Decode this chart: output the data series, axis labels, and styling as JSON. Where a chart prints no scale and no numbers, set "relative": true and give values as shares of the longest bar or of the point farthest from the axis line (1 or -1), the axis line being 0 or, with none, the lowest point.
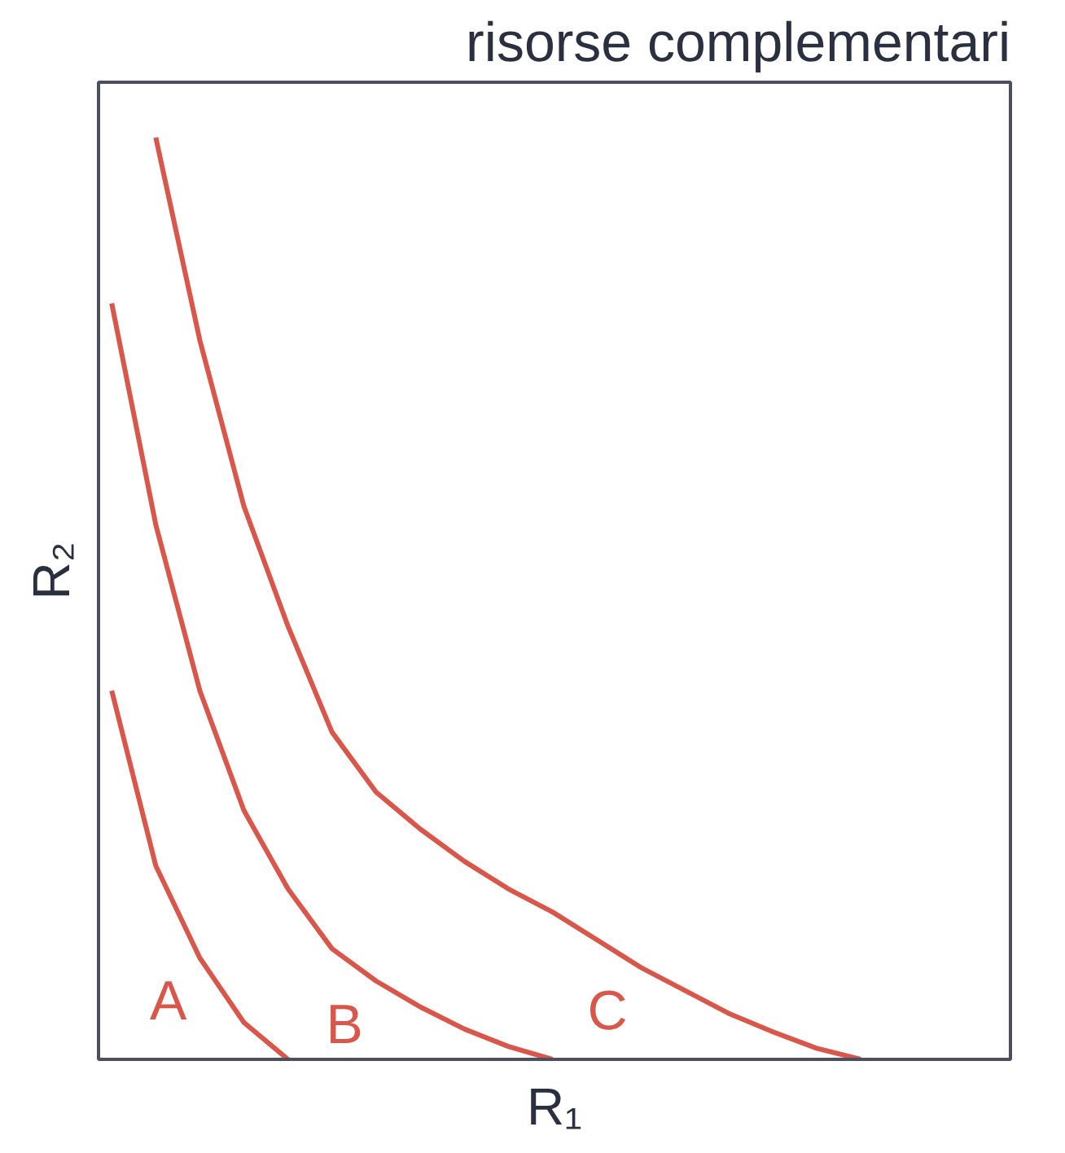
{
  "chart_data": {
    "type": "line",
    "title": "risorse complementari",
    "xlabel": "R₁",
    "ylabel": "R₂",
    "relative": true,
    "grid": false,
    "marker": "none",
    "line_style": "solid",
    "categories": [
      null,
      null,
      null,
      null,
      null,
      null,
      null,
      null,
      null,
      null,
      null,
      null,
      null,
      null,
      null,
      null,
      null,
      null
    ],
    "series": [
      {
        "name": "A",
        "color": "#d8564a",
        "values": [
          0.4,
          0.21,
          0.11,
          0.04,
          0,
          null,
          null,
          null,
          null,
          null,
          null,
          null,
          null,
          null,
          null,
          null,
          null,
          null
        ]
      },
      {
        "name": "B",
        "color": "#d8564a",
        "values": [
          0.82,
          0.58,
          0.4,
          0.27,
          0.185,
          0.12,
          0.085,
          0.057,
          0.033,
          0.014,
          0,
          null,
          null,
          null,
          null,
          null,
          null,
          null
        ]
      },
      {
        "name": "C",
        "color": "#d8564a",
        "values": [
          null,
          1,
          0.78,
          0.6,
          0.47,
          0.355,
          0.29,
          0.25,
          0.215,
          0.185,
          0.16,
          0.13,
          0.1,
          0.075,
          0.05,
          0.03,
          0.012,
          0
        ]
      }
    ]
  }
}
